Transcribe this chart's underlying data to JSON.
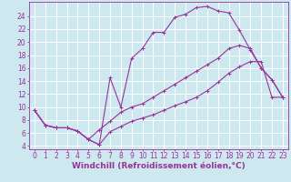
{
  "background_color": "#cde8ee",
  "grid_color": "#ffffff",
  "line_color": "#993399",
  "marker": "+",
  "xlabel": "Windchill (Refroidissement éolien,°C)",
  "xlabel_fontsize": 6.5,
  "tick_fontsize": 5.5,
  "xlim": [
    -0.5,
    23.5
  ],
  "ylim": [
    3.5,
    26.2
  ],
  "xticks": [
    0,
    1,
    2,
    3,
    4,
    5,
    6,
    7,
    8,
    9,
    10,
    11,
    12,
    13,
    14,
    15,
    16,
    17,
    18,
    19,
    20,
    21,
    22,
    23
  ],
  "yticks": [
    4,
    6,
    8,
    10,
    12,
    14,
    16,
    18,
    20,
    22,
    24
  ],
  "curve1_x": [
    0,
    1,
    2,
    3,
    4,
    5,
    6,
    7,
    8,
    9,
    10,
    11,
    12,
    13,
    14,
    15,
    16,
    17,
    18,
    19,
    20,
    21,
    22,
    23
  ],
  "curve1_y": [
    9.5,
    7.2,
    6.8,
    6.8,
    6.3,
    5.0,
    4.2,
    14.5,
    10.0,
    17.5,
    19.0,
    21.5,
    21.5,
    23.8,
    24.3,
    25.3,
    25.5,
    24.8,
    24.5,
    21.8,
    18.8,
    16.0,
    14.2,
    11.5
  ],
  "curve2_x": [
    0,
    1,
    2,
    3,
    4,
    5,
    6,
    7,
    8,
    9,
    10,
    11,
    12,
    13,
    14,
    15,
    16,
    17,
    18,
    19,
    20,
    21,
    22,
    23
  ],
  "curve2_y": [
    9.5,
    7.2,
    6.8,
    6.8,
    6.3,
    5.0,
    6.5,
    7.8,
    9.2,
    10.0,
    10.5,
    11.5,
    12.5,
    13.5,
    14.5,
    15.5,
    16.5,
    17.5,
    19.0,
    19.5,
    19.0,
    16.0,
    14.2,
    11.5
  ],
  "curve3_x": [
    0,
    1,
    2,
    3,
    4,
    5,
    6,
    7,
    8,
    9,
    10,
    11,
    12,
    13,
    14,
    15,
    16,
    17,
    18,
    19,
    20,
    21,
    22,
    23
  ],
  "curve3_y": [
    9.5,
    7.2,
    6.8,
    6.8,
    6.3,
    5.0,
    4.2,
    6.2,
    7.0,
    7.8,
    8.3,
    8.8,
    9.5,
    10.2,
    10.8,
    11.5,
    12.5,
    13.8,
    15.2,
    16.2,
    17.0,
    17.0,
    11.5,
    11.5
  ]
}
